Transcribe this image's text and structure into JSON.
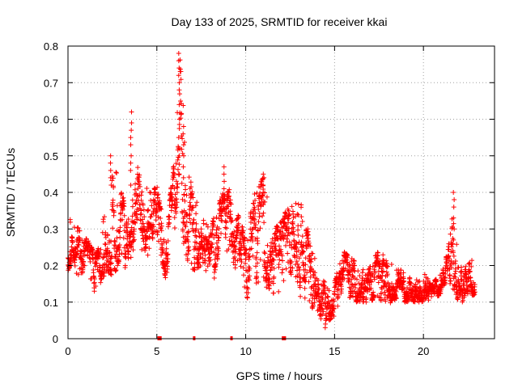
{
  "chart_data": {
    "type": "scatter",
    "title": "Day 133 of 2025, SRMTID for receiver kkai",
    "xlabel": "GPS time / hours",
    "ylabel": "SRMTID / TECUs",
    "xlim": [
      0,
      24
    ],
    "ylim": [
      0,
      0.8
    ],
    "xticks": [
      0,
      5,
      10,
      15,
      20
    ],
    "yticks": [
      0,
      0.1,
      0.2,
      0.3,
      0.4,
      0.5,
      0.6,
      0.7,
      0.8
    ],
    "xtick_labels": [
      "0",
      "5",
      "10",
      "15",
      "20"
    ],
    "ytick_labels": [
      "0",
      "0.1",
      "0.2",
      "0.3",
      "0.4",
      "0.5",
      "0.6",
      "0.7",
      "0.8"
    ],
    "grid": true,
    "marker": "+",
    "color": "#ff0000",
    "points_per_hour": 120,
    "series": [
      {
        "name": "SRMTID",
        "x_start": 0.0,
        "x_end": 22.9,
        "envelope": {
          "x": [
            0.0,
            0.3,
            0.6,
            1.0,
            1.5,
            1.8,
            2.2,
            2.5,
            3.0,
            3.5,
            4.0,
            4.5,
            5.0,
            5.5,
            6.0,
            6.3,
            6.6,
            7.0,
            7.5,
            8.0,
            8.5,
            9.0,
            9.5,
            10.0,
            10.5,
            11.0,
            11.5,
            12.0,
            12.5,
            13.0,
            13.5,
            14.0,
            14.5,
            15.0,
            15.5,
            16.0,
            16.5,
            17.0,
            17.5,
            18.0,
            18.5,
            19.0,
            19.5,
            20.0,
            20.5,
            21.0,
            21.3,
            21.6,
            22.0,
            22.5,
            22.9
          ],
          "low": [
            0.18,
            0.22,
            0.15,
            0.2,
            0.12,
            0.15,
            0.18,
            0.16,
            0.2,
            0.18,
            0.25,
            0.22,
            0.28,
            0.16,
            0.3,
            0.35,
            0.22,
            0.18,
            0.2,
            0.14,
            0.18,
            0.2,
            0.18,
            0.1,
            0.14,
            0.15,
            0.12,
            0.1,
            0.18,
            0.12,
            0.08,
            0.06,
            0.04,
            0.06,
            0.14,
            0.1,
            0.1,
            0.1,
            0.1,
            0.1,
            0.09,
            0.1,
            0.1,
            0.1,
            0.1,
            0.12,
            0.15,
            0.14,
            0.1,
            0.1,
            0.12
          ],
          "high": [
            0.34,
            0.34,
            0.3,
            0.28,
            0.24,
            0.25,
            0.42,
            0.5,
            0.4,
            0.34,
            0.5,
            0.4,
            0.42,
            0.3,
            0.5,
            0.78,
            0.55,
            0.4,
            0.35,
            0.3,
            0.38,
            0.42,
            0.35,
            0.28,
            0.4,
            0.45,
            0.3,
            0.32,
            0.38,
            0.4,
            0.3,
            0.2,
            0.15,
            0.16,
            0.24,
            0.22,
            0.2,
            0.22,
            0.24,
            0.22,
            0.2,
            0.18,
            0.16,
            0.18,
            0.16,
            0.18,
            0.24,
            0.4,
            0.2,
            0.2,
            0.25
          ]
        }
      }
    ],
    "spikes": [
      {
        "x": 3.55,
        "y": [
          0.42,
          0.46,
          0.48,
          0.5,
          0.53,
          0.55,
          0.57,
          0.59,
          0.62
        ]
      },
      {
        "x": 6.25,
        "y": [
          0.45,
          0.5,
          0.55,
          0.6,
          0.64,
          0.68,
          0.7,
          0.72,
          0.74,
          0.76,
          0.78
        ]
      },
      {
        "x": 6.5,
        "y": [
          0.44,
          0.47,
          0.5,
          0.53,
          0.56,
          0.58
        ]
      },
      {
        "x": 2.4,
        "y": [
          0.42,
          0.44,
          0.46,
          0.48,
          0.5
        ]
      },
      {
        "x": 8.8,
        "y": [
          0.38,
          0.41,
          0.43,
          0.45,
          0.47
        ]
      },
      {
        "x": 11.0,
        "y": [
          0.4,
          0.42,
          0.44,
          0.45
        ]
      },
      {
        "x": 21.7,
        "y": [
          0.3,
          0.33,
          0.36,
          0.38,
          0.4
        ]
      },
      {
        "x": 14.5,
        "y": [
          0.03,
          0.04,
          0.05
        ]
      }
    ],
    "gap_markers": [
      5.1,
      5.15,
      5.2,
      7.1,
      9.2,
      12.1,
      12.15,
      12.2
    ]
  }
}
